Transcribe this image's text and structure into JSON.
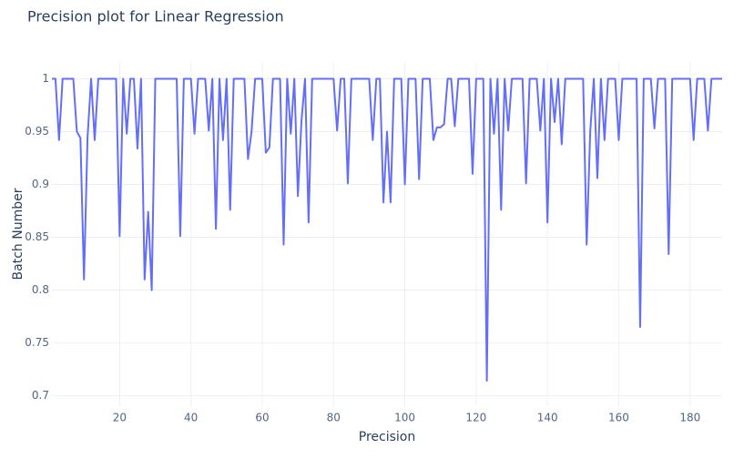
{
  "chart_data": {
    "type": "line",
    "title": "Precision plot for Linear Regression",
    "x_label": "Precision",
    "y_label": "Batch Number",
    "xlim": [
      1,
      189
    ],
    "ylim": [
      0.69,
      1.016
    ],
    "xticks": [
      20,
      40,
      60,
      80,
      100,
      120,
      140,
      160,
      180
    ],
    "yticks": [
      0.7,
      0.75,
      0.8,
      0.85,
      0.9,
      0.95,
      1
    ],
    "grid": true,
    "color": "#636efa",
    "x": [
      1,
      2,
      3,
      4,
      5,
      6,
      7,
      8,
      9,
      10,
      11,
      12,
      13,
      14,
      15,
      16,
      17,
      18,
      19,
      20,
      21,
      22,
      23,
      24,
      25,
      26,
      27,
      28,
      29,
      30,
      31,
      32,
      33,
      34,
      35,
      36,
      37,
      38,
      39,
      40,
      41,
      42,
      43,
      44,
      45,
      46,
      47,
      48,
      49,
      50,
      51,
      52,
      53,
      54,
      55,
      56,
      57,
      58,
      59,
      60,
      61,
      62,
      63,
      64,
      65,
      66,
      67,
      68,
      69,
      70,
      71,
      72,
      73,
      74,
      75,
      76,
      77,
      78,
      79,
      80,
      81,
      82,
      83,
      84,
      85,
      86,
      87,
      88,
      89,
      90,
      91,
      92,
      93,
      94,
      95,
      96,
      97,
      98,
      99,
      100,
      101,
      102,
      103,
      104,
      105,
      106,
      107,
      108,
      109,
      110,
      111,
      112,
      113,
      114,
      115,
      116,
      117,
      118,
      119,
      120,
      121,
      122,
      123,
      124,
      125,
      126,
      127,
      128,
      129,
      130,
      131,
      132,
      133,
      134,
      135,
      136,
      137,
      138,
      139,
      140,
      141,
      142,
      143,
      144,
      145,
      146,
      147,
      148,
      149,
      150,
      151,
      152,
      153,
      154,
      155,
      156,
      157,
      158,
      159,
      160,
      161,
      162,
      163,
      164,
      165,
      166,
      167,
      168,
      169,
      170,
      171,
      172,
      173,
      174,
      175,
      176,
      177,
      178,
      179,
      180,
      181,
      182,
      183,
      184,
      185,
      186,
      187,
      188,
      189
    ],
    "values": [
      1,
      1,
      0.942,
      1,
      1,
      1,
      1,
      0.95,
      0.944,
      0.81,
      0.945,
      1,
      0.942,
      1,
      1,
      1,
      1,
      1,
      1,
      0.851,
      1,
      0.948,
      1,
      1,
      0.934,
      1,
      0.81,
      0.874,
      0.8,
      1,
      1,
      1,
      1,
      1,
      1,
      1,
      0.851,
      1,
      1,
      1,
      0.948,
      1,
      1,
      1,
      0.951,
      1,
      0.858,
      1,
      0.942,
      1,
      0.876,
      1,
      1,
      1,
      1,
      0.924,
      0.95,
      1,
      1,
      1,
      0.93,
      0.935,
      1,
      1,
      1,
      0.843,
      1,
      0.948,
      1,
      0.889,
      0.96,
      1,
      0.864,
      1,
      1,
      1,
      1,
      1,
      1,
      1,
      0.951,
      1,
      1,
      0.901,
      1,
      1,
      1,
      1,
      1,
      1,
      0.942,
      1,
      1,
      0.883,
      0.95,
      0.883,
      1,
      1,
      1,
      0.9,
      1,
      1,
      1,
      0.905,
      1,
      1,
      1,
      0.942,
      0.954,
      0.954,
      0.957,
      1,
      1,
      0.955,
      1,
      1,
      1,
      1,
      0.91,
      1,
      1,
      1,
      0.714,
      1,
      0.948,
      1,
      0.876,
      1,
      0.951,
      1,
      1,
      1,
      1,
      0.901,
      1,
      1,
      1,
      0.951,
      1,
      0.864,
      1,
      0.959,
      1,
      0.938,
      1,
      1,
      1,
      1,
      1,
      1,
      0.843,
      0.95,
      1,
      0.906,
      1,
      0.942,
      1,
      1,
      1,
      0.942,
      1,
      1,
      1,
      1,
      1,
      0.765,
      1,
      1,
      1,
      0.953,
      1,
      1,
      1,
      0.834,
      1,
      1,
      1,
      1,
      1,
      1,
      0.942,
      1,
      1,
      1,
      0.951,
      1,
      1,
      1,
      1
    ]
  }
}
